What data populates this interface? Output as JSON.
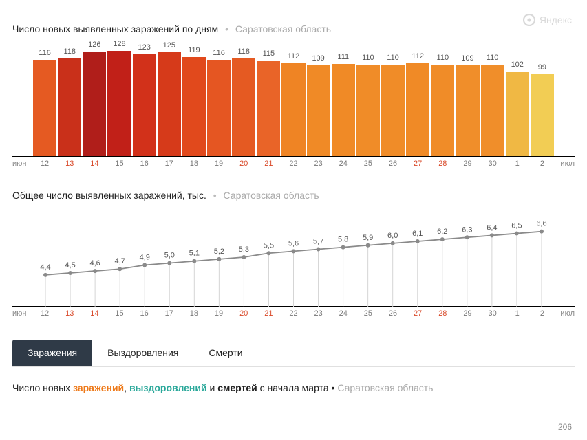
{
  "brand": "Яндекс",
  "bar_chart": {
    "type": "bar",
    "title_main": "Число новых выявленных заражений по дням",
    "title_sub": "Саратовская область",
    "x_left": "июн",
    "x_right": "июл",
    "y_max": 140,
    "value_fontsize": 11,
    "tick_fontsize": 11,
    "weekend_color": "#d94a2a",
    "weekday_tick_color": "#777777",
    "bars": [
      {
        "label": "12",
        "value": 116,
        "color": "#e55a22",
        "weekend": false
      },
      {
        "label": "13",
        "value": 118,
        "color": "#c9301a",
        "weekend": true
      },
      {
        "label": "14",
        "value": 126,
        "color": "#b01e1a",
        "weekend": true
      },
      {
        "label": "15",
        "value": 128,
        "color": "#c12018",
        "weekend": false
      },
      {
        "label": "16",
        "value": 123,
        "color": "#d2311a",
        "weekend": false
      },
      {
        "label": "17",
        "value": 125,
        "color": "#d63a1a",
        "weekend": false
      },
      {
        "label": "18",
        "value": 119,
        "color": "#e1491c",
        "weekend": false
      },
      {
        "label": "19",
        "value": 116,
        "color": "#e55622",
        "weekend": false
      },
      {
        "label": "20",
        "value": 118,
        "color": "#e55a22",
        "weekend": true
      },
      {
        "label": "21",
        "value": 115,
        "color": "#e96428",
        "weekend": true
      },
      {
        "label": "22",
        "value": 112,
        "color": "#ef8424",
        "weekend": false
      },
      {
        "label": "23",
        "value": 109,
        "color": "#f08a26",
        "weekend": false
      },
      {
        "label": "24",
        "value": 111,
        "color": "#f08a26",
        "weekend": false
      },
      {
        "label": "25",
        "value": 110,
        "color": "#f08c28",
        "weekend": false
      },
      {
        "label": "26",
        "value": 110,
        "color": "#f08c28",
        "weekend": false
      },
      {
        "label": "27",
        "value": 112,
        "color": "#f08a26",
        "weekend": true
      },
      {
        "label": "28",
        "value": 110,
        "color": "#f08c28",
        "weekend": true
      },
      {
        "label": "29",
        "value": 109,
        "color": "#f08e2a",
        "weekend": false
      },
      {
        "label": "30",
        "value": 110,
        "color": "#f08e2a",
        "weekend": false
      },
      {
        "label": "1",
        "value": 102,
        "color": "#f0b844",
        "weekend": false
      },
      {
        "label": "2",
        "value": 99,
        "color": "#f2cd54",
        "weekend": false
      }
    ]
  },
  "line_chart": {
    "type": "line",
    "title_main": "Общее число выявленных заражений, тыс.",
    "title_sub": "Саратовская область",
    "x_left": "июн",
    "x_right": "июл",
    "y_min": 3.0,
    "y_max": 7.0,
    "line_color": "#8a8a8a",
    "grid_color": "#d5d5d5",
    "marker_color": "#8a8a8a",
    "value_fontsize": 11,
    "points": [
      {
        "label": "12",
        "value": 4.4,
        "display": "4,4",
        "weekend": false
      },
      {
        "label": "13",
        "value": 4.5,
        "display": "4,5",
        "weekend": true
      },
      {
        "label": "14",
        "value": 4.6,
        "display": "4,6",
        "weekend": true
      },
      {
        "label": "15",
        "value": 4.7,
        "display": "4,7",
        "weekend": false
      },
      {
        "label": "16",
        "value": 4.9,
        "display": "4,9",
        "weekend": false
      },
      {
        "label": "17",
        "value": 5.0,
        "display": "5,0",
        "weekend": false
      },
      {
        "label": "18",
        "value": 5.1,
        "display": "5,1",
        "weekend": false
      },
      {
        "label": "19",
        "value": 5.2,
        "display": "5,2",
        "weekend": false
      },
      {
        "label": "20",
        "value": 5.3,
        "display": "5,3",
        "weekend": true
      },
      {
        "label": "21",
        "value": 5.5,
        "display": "5,5",
        "weekend": true
      },
      {
        "label": "22",
        "value": 5.6,
        "display": "5,6",
        "weekend": false
      },
      {
        "label": "23",
        "value": 5.7,
        "display": "5,7",
        "weekend": false
      },
      {
        "label": "24",
        "value": 5.8,
        "display": "5,8",
        "weekend": false
      },
      {
        "label": "25",
        "value": 5.9,
        "display": "5,9",
        "weekend": false
      },
      {
        "label": "26",
        "value": 6.0,
        "display": "6,0",
        "weekend": false
      },
      {
        "label": "27",
        "value": 6.1,
        "display": "6,1",
        "weekend": true
      },
      {
        "label": "28",
        "value": 6.2,
        "display": "6,2",
        "weekend": true
      },
      {
        "label": "29",
        "value": 6.3,
        "display": "6,3",
        "weekend": false
      },
      {
        "label": "30",
        "value": 6.4,
        "display": "6,4",
        "weekend": false
      },
      {
        "label": "1",
        "value": 6.5,
        "display": "6,5",
        "weekend": false
      },
      {
        "label": "2",
        "value": 6.6,
        "display": "6,6",
        "weekend": false
      }
    ]
  },
  "tabs": {
    "items": [
      {
        "label": "Заражения",
        "active": true
      },
      {
        "label": "Выздоровления",
        "active": false
      },
      {
        "label": "Смерти",
        "active": false
      }
    ]
  },
  "footer": {
    "prefix": "Число новых ",
    "kw_infections": "заражений",
    "sep1": ", ",
    "kw_recoveries": "выздоровлений",
    "sep2": " и ",
    "kw_deaths": "смертей",
    "suffix": " с начала марта",
    "sub": "Саратовская область",
    "page_num": "206"
  }
}
